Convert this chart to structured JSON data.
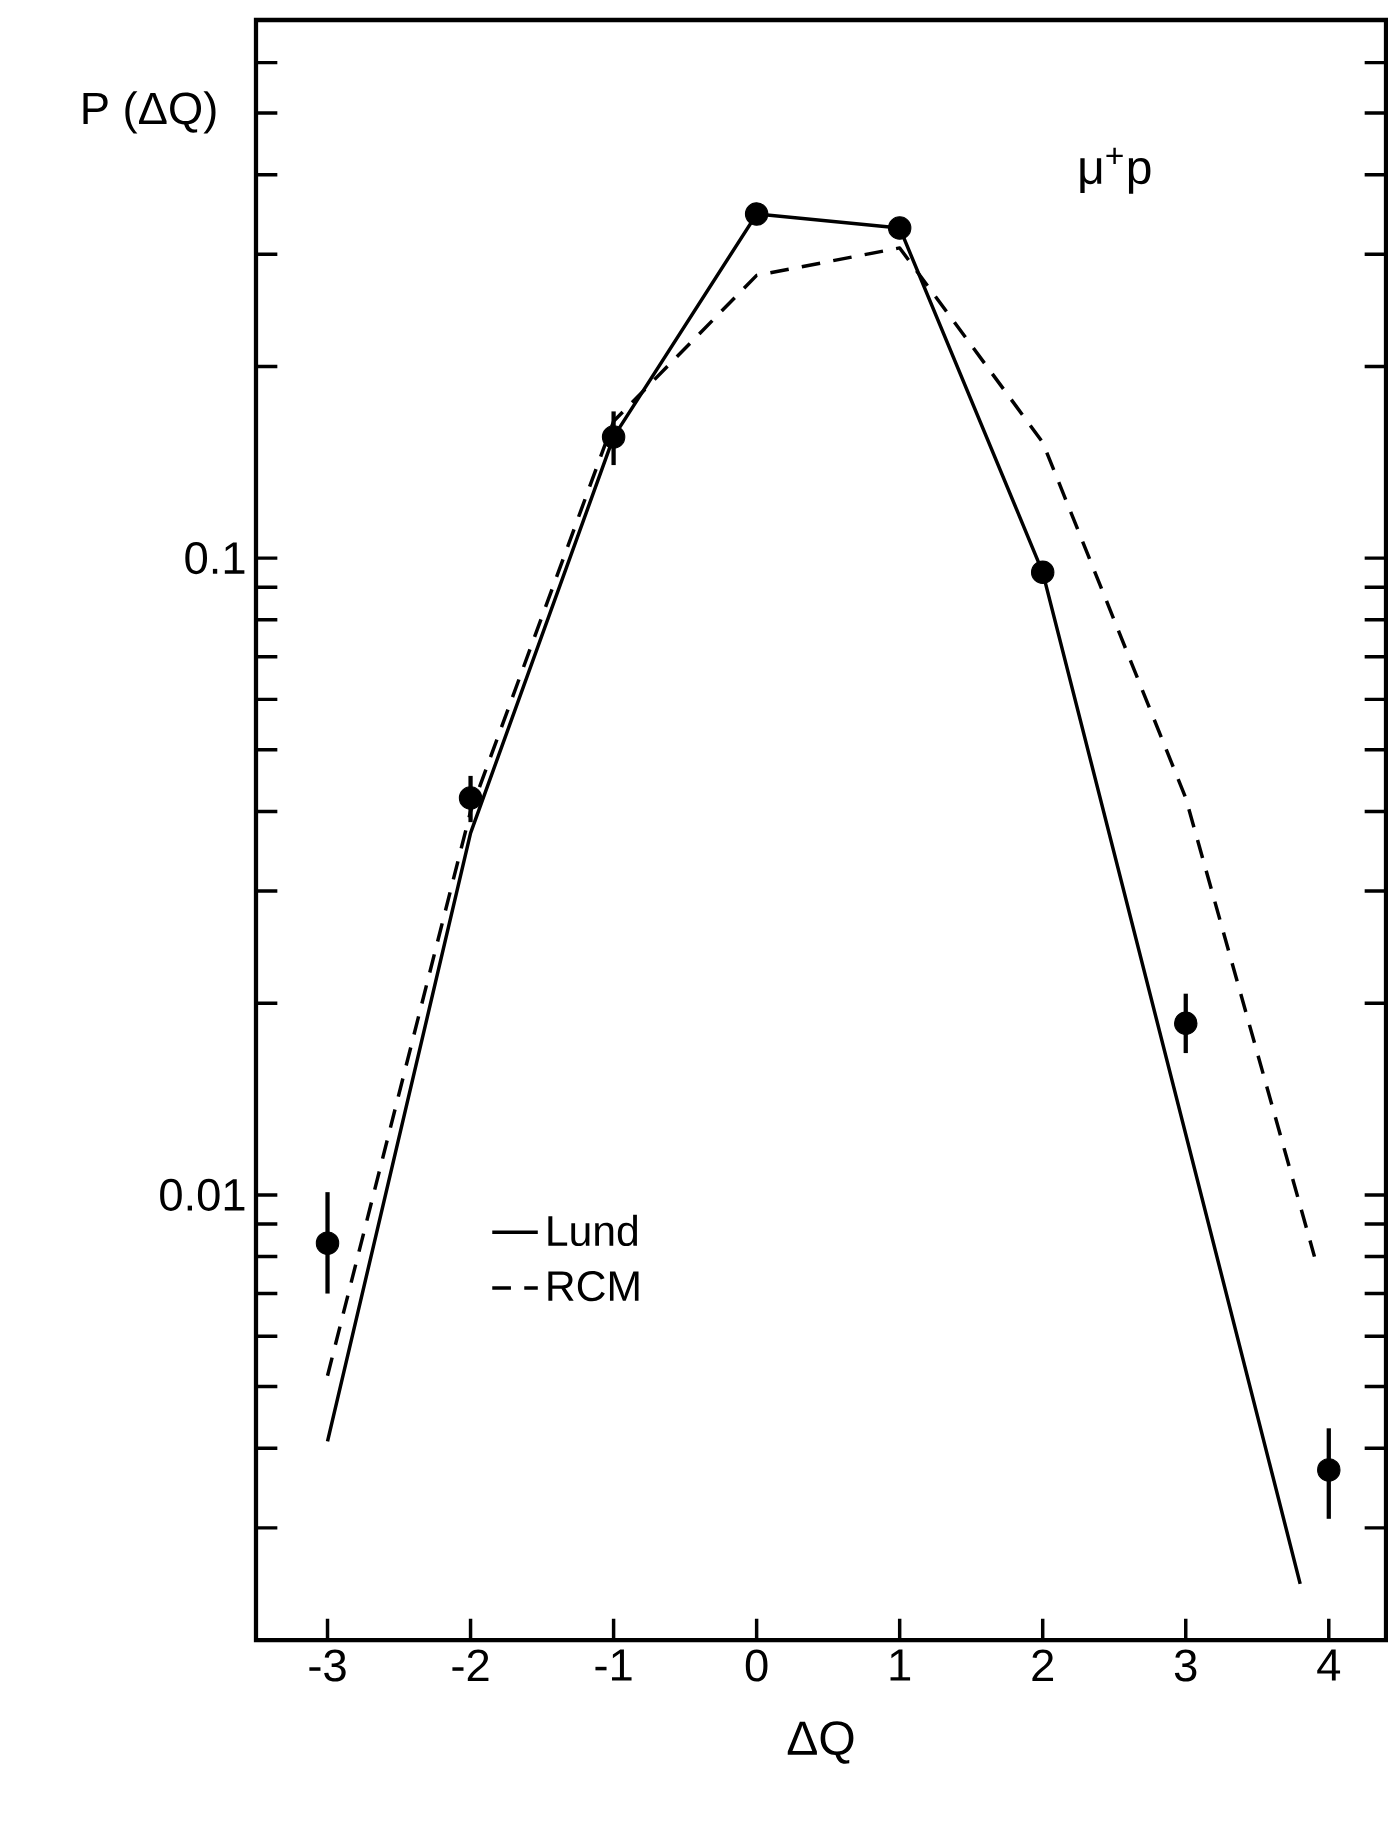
{
  "chart_data": {
    "type": "scatter",
    "xlabel": "ΔQ",
    "ylabel": "P (ΔQ)",
    "annotations": [
      "μ$^{+}$p"
    ],
    "x": [
      -3,
      -2,
      -1,
      0,
      1,
      2,
      3,
      4
    ],
    "series": [
      {
        "color": "#000000",
        "values": [
          0.0084,
          0.042,
          0.155,
          0.347,
          0.33,
          0.095,
          0.0186,
          0.0037
        ],
        "errors": [
          [
            0.007,
            0.0101
          ],
          [
            0.0385,
            0.0455
          ],
          [
            0.14,
            0.17
          ],
          null,
          null,
          null,
          [
            0.0167,
            0.0207
          ],
          [
            0.0031,
            0.0043
          ]
        ]
      },
      {
        "type": "line",
        "name": "Lund",
        "color": "#000000",
        "line_style": "solid",
        "x": [
          -3,
          -2,
          -1,
          0,
          1,
          2,
          3.8
        ],
        "values": [
          0.0041,
          0.037,
          0.155,
          0.347,
          0.33,
          0.095,
          0.00245
        ]
      },
      {
        "type": "line",
        "name": "RCM",
        "color": "#000000",
        "line_style": "dashed",
        "x": [
          -3,
          -2,
          -1,
          0,
          1,
          2,
          3,
          3.9
        ],
        "values": [
          0.0052,
          0.04,
          0.164,
          0.278,
          0.307,
          0.152,
          0.042,
          0.008
        ]
      }
    ],
    "log": "y",
    "legend": "bottom left",
    "grid": false,
    "xlim": [
      -3.5,
      4.4
    ],
    "ylim": [
      0.002,
      0.7
    ],
    "xticks": [
      -3,
      -2,
      -1,
      0,
      1,
      2,
      3,
      4
    ],
    "yticks": [
      {
        "value": 0.003,
        "label": null
      },
      {
        "value": 0.004,
        "label": null
      },
      {
        "value": 0.005,
        "label": null
      },
      {
        "value": 0.006,
        "label": null
      },
      {
        "value": 0.007,
        "label": null
      },
      {
        "value": 0.008,
        "label": null
      },
      {
        "value": 0.009,
        "label": null
      },
      0.01,
      {
        "value": 0.02,
        "label": null
      },
      {
        "value": 0.03,
        "label": null
      },
      {
        "value": 0.04,
        "label": null
      },
      {
        "value": 0.05,
        "label": null
      },
      {
        "value": 0.06,
        "label": null
      },
      {
        "value": 0.07,
        "label": null
      },
      {
        "value": 0.08,
        "label": null
      },
      {
        "value": 0.09,
        "label": null
      },
      0.1,
      {
        "value": 0.2,
        "label": null
      },
      {
        "value": 0.3,
        "label": null
      },
      {
        "value": 0.4,
        "label": null
      },
      {
        "value": 0.5,
        "label": null
      },
      {
        "value": 0.6,
        "label": null
      }
    ]
  }
}
